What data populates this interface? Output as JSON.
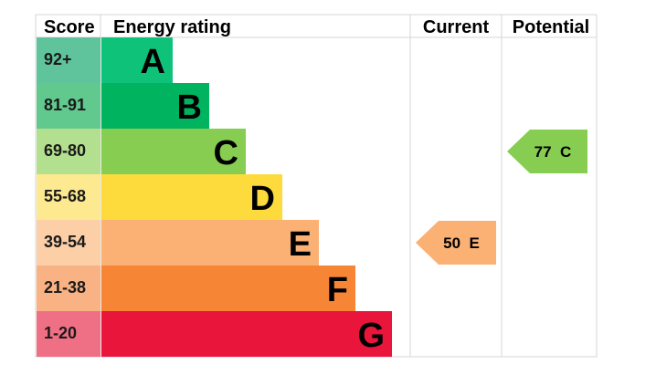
{
  "chart_data": {
    "type": "table",
    "title": "",
    "headers": {
      "score": "Score",
      "rating": "Energy rating",
      "current": "Current",
      "potential": "Potential"
    },
    "bands": [
      {
        "letter": "A",
        "range": "92+",
        "color": "#0ec27a",
        "score_color": "#5fc49c"
      },
      {
        "letter": "B",
        "range": "81-91",
        "color": "#00b35f",
        "score_color": "#62c98e"
      },
      {
        "letter": "C",
        "range": "69-80",
        "color": "#86cd52",
        "score_color": "#b3e08f"
      },
      {
        "letter": "D",
        "range": "55-68",
        "color": "#fddb3c",
        "score_color": "#fde98f"
      },
      {
        "letter": "E",
        "range": "39-54",
        "color": "#fbb074",
        "score_color": "#fccfa7"
      },
      {
        "letter": "F",
        "range": "21-38",
        "color": "#f68536",
        "score_color": "#f9b284"
      },
      {
        "letter": "G",
        "range": "1-20",
        "color": "#e9153b",
        "score_color": "#ef6f85"
      }
    ],
    "current": {
      "value": 50,
      "band": "E",
      "label": "50  E"
    },
    "potential": {
      "value": 77,
      "band": "C",
      "label": "77  C"
    }
  }
}
